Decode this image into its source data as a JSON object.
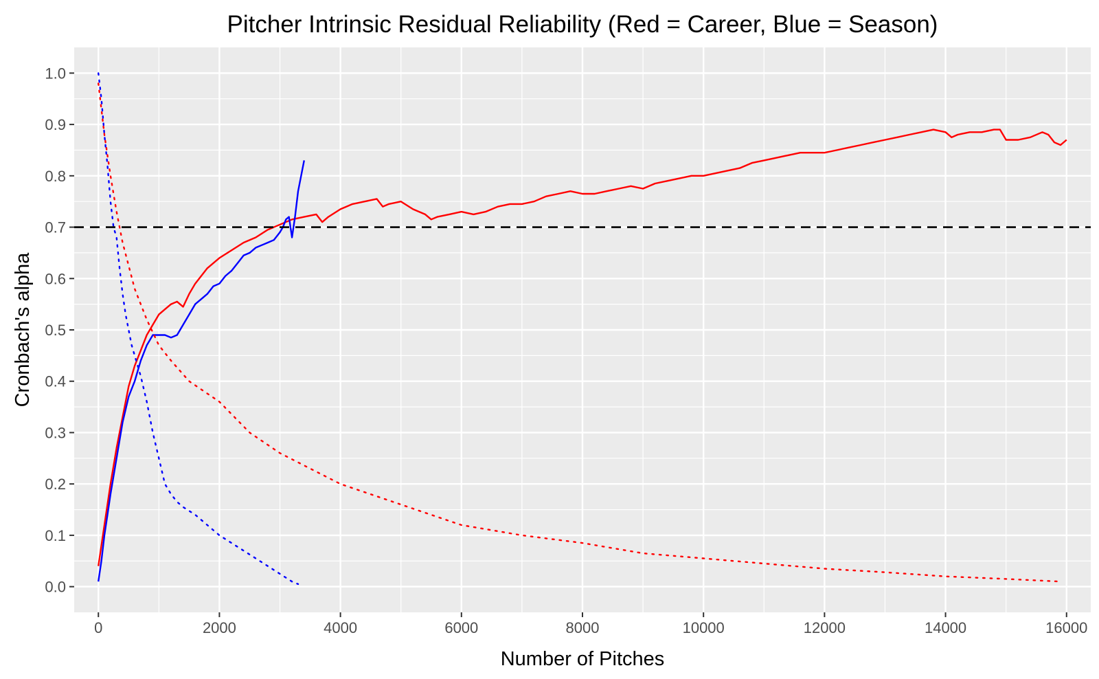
{
  "chart_data": {
    "type": "line",
    "title": "Pitcher Intrinsic Residual Reliability (Red = Career, Blue = Season)",
    "xlabel": "Number of Pitches",
    "ylabel": "Cronbach's alpha",
    "xlim": [
      -400,
      16400
    ],
    "ylim": [
      -0.05,
      1.05
    ],
    "x_ticks": [
      0,
      2000,
      4000,
      6000,
      8000,
      10000,
      12000,
      14000,
      16000
    ],
    "y_ticks": [
      0.0,
      0.1,
      0.2,
      0.3,
      0.4,
      0.5,
      0.6,
      0.7,
      0.8,
      0.9,
      1.0
    ],
    "x_tick_labels": [
      "0",
      "2000",
      "4000",
      "6000",
      "8000",
      "10000",
      "12000",
      "14000",
      "16000"
    ],
    "y_tick_labels": [
      "0.0",
      "0.1",
      "0.2",
      "0.3",
      "0.4",
      "0.5",
      "0.6",
      "0.7",
      "0.8",
      "0.9",
      "1.0"
    ],
    "grid": true,
    "background": "#ebebeb",
    "reference_line": {
      "y": 0.7,
      "color": "#000000",
      "style": "dashed"
    },
    "series": [
      {
        "color": "#ff0000",
        "style": "solid",
        "x": [
          0,
          100,
          200,
          300,
          400,
          500,
          600,
          700,
          800,
          900,
          1000,
          1100,
          1200,
          1300,
          1400,
          1500,
          1600,
          1800,
          2000,
          2200,
          2400,
          2600,
          2800,
          3000,
          3200,
          3400,
          3600,
          3700,
          3800,
          4000,
          4200,
          4400,
          4600,
          4700,
          4800,
          5000,
          5200,
          5400,
          5500,
          5600,
          5800,
          6000,
          6200,
          6400,
          6600,
          6800,
          7000,
          7200,
          7400,
          7600,
          7800,
          8000,
          8200,
          8400,
          8600,
          8800,
          9000,
          9200,
          9400,
          9600,
          9800,
          10000,
          10200,
          10400,
          10600,
          10800,
          11000,
          11200,
          11400,
          11600,
          11800,
          12000,
          12200,
          12400,
          12600,
          12800,
          13000,
          13200,
          13400,
          13600,
          13800,
          14000,
          14100,
          14200,
          14400,
          14600,
          14800,
          14900,
          15000,
          15200,
          15400,
          15600,
          15700,
          15800,
          15900,
          16000
        ],
        "y": [
          0.04,
          0.12,
          0.2,
          0.27,
          0.33,
          0.39,
          0.43,
          0.46,
          0.49,
          0.51,
          0.53,
          0.54,
          0.55,
          0.555,
          0.545,
          0.57,
          0.59,
          0.62,
          0.64,
          0.655,
          0.67,
          0.68,
          0.695,
          0.705,
          0.715,
          0.72,
          0.725,
          0.71,
          0.72,
          0.735,
          0.745,
          0.75,
          0.755,
          0.74,
          0.745,
          0.75,
          0.735,
          0.725,
          0.715,
          0.72,
          0.725,
          0.73,
          0.725,
          0.73,
          0.74,
          0.745,
          0.745,
          0.75,
          0.76,
          0.765,
          0.77,
          0.765,
          0.765,
          0.77,
          0.775,
          0.78,
          0.775,
          0.785,
          0.79,
          0.795,
          0.8,
          0.8,
          0.805,
          0.81,
          0.815,
          0.825,
          0.83,
          0.835,
          0.84,
          0.845,
          0.845,
          0.845,
          0.85,
          0.855,
          0.86,
          0.865,
          0.87,
          0.875,
          0.88,
          0.885,
          0.89,
          0.885,
          0.875,
          0.88,
          0.885,
          0.885,
          0.89,
          0.89,
          0.87,
          0.87,
          0.875,
          0.885,
          0.88,
          0.865,
          0.86,
          0.87
        ]
      },
      {
        "color": "#0000ff",
        "style": "solid",
        "x": [
          0,
          50,
          100,
          150,
          200,
          300,
          400,
          500,
          600,
          700,
          800,
          900,
          1000,
          1100,
          1200,
          1300,
          1400,
          1500,
          1600,
          1700,
          1800,
          1900,
          2000,
          2100,
          2200,
          2300,
          2400,
          2500,
          2600,
          2700,
          2800,
          2900,
          3000,
          3050,
          3100,
          3150,
          3200,
          3250,
          3300,
          3350,
          3400
        ],
        "y": [
          0.01,
          0.05,
          0.1,
          0.14,
          0.18,
          0.25,
          0.32,
          0.37,
          0.4,
          0.44,
          0.47,
          0.49,
          0.49,
          0.49,
          0.485,
          0.49,
          0.51,
          0.53,
          0.55,
          0.56,
          0.57,
          0.585,
          0.59,
          0.605,
          0.615,
          0.63,
          0.645,
          0.65,
          0.66,
          0.665,
          0.67,
          0.675,
          0.69,
          0.7,
          0.715,
          0.72,
          0.68,
          0.72,
          0.77,
          0.8,
          0.83
        ]
      },
      {
        "color": "#ff0000",
        "style": "dotted",
        "x": [
          0,
          100,
          200,
          300,
          400,
          600,
          800,
          1000,
          1200,
          1500,
          2000,
          2500,
          3000,
          3500,
          4000,
          5000,
          6000,
          7000,
          8000,
          9000,
          10000,
          11000,
          12000,
          13000,
          14000,
          15000,
          15900
        ],
        "y": [
          0.98,
          0.88,
          0.8,
          0.73,
          0.67,
          0.58,
          0.52,
          0.47,
          0.44,
          0.4,
          0.36,
          0.3,
          0.26,
          0.23,
          0.2,
          0.16,
          0.12,
          0.1,
          0.085,
          0.065,
          0.055,
          0.045,
          0.035,
          0.028,
          0.02,
          0.015,
          0.01
        ]
      },
      {
        "color": "#0000ff",
        "style": "dotted",
        "x": [
          0,
          50,
          100,
          150,
          200,
          250,
          300,
          350,
          400,
          450,
          500,
          550,
          600,
          700,
          800,
          900,
          1000,
          1100,
          1200,
          1300,
          1400,
          1600,
          1800,
          2000,
          2200,
          2400,
          2600,
          2800,
          3000,
          3200,
          3300
        ],
        "y": [
          1.0,
          0.95,
          0.88,
          0.82,
          0.75,
          0.7,
          0.68,
          0.62,
          0.57,
          0.53,
          0.5,
          0.47,
          0.45,
          0.41,
          0.36,
          0.3,
          0.25,
          0.2,
          0.18,
          0.165,
          0.155,
          0.14,
          0.12,
          0.1,
          0.085,
          0.07,
          0.055,
          0.04,
          0.025,
          0.01,
          0.005
        ]
      }
    ]
  }
}
